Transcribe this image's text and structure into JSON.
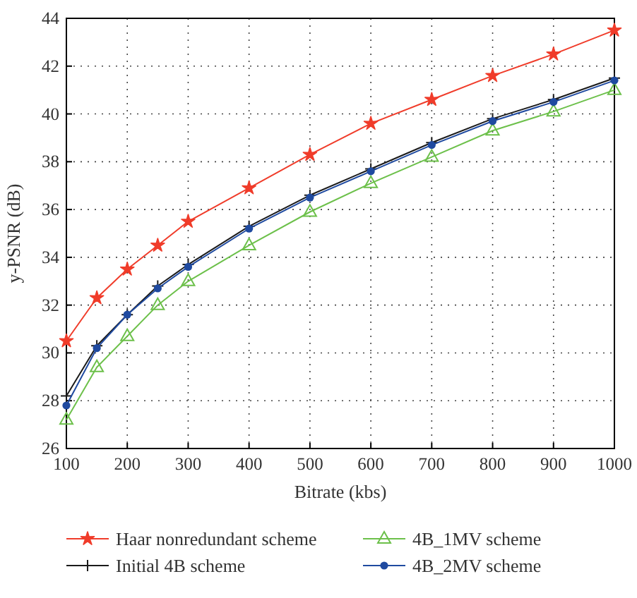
{
  "chart_data": {
    "type": "line",
    "xlabel": "Bitrate (kbs)",
    "ylabel": "y-PSNR (dB)",
    "x": [
      100,
      150,
      200,
      250,
      300,
      400,
      500,
      600,
      700,
      800,
      900,
      1000
    ],
    "series": [
      {
        "name": "Haar nonredundant scheme",
        "color": "#f03c2a",
        "marker": "star",
        "values": [
          30.5,
          32.3,
          33.5,
          34.5,
          35.5,
          36.9,
          38.3,
          39.6,
          40.6,
          41.6,
          42.5,
          43.5
        ]
      },
      {
        "name": "4B_1MV scheme",
        "color": "#6cc04a",
        "marker": "triangle",
        "values": [
          27.2,
          29.4,
          30.7,
          32.0,
          33.0,
          34.5,
          35.9,
          37.1,
          38.2,
          39.3,
          40.1,
          41.0
        ]
      },
      {
        "name": "Initial 4B scheme",
        "color": "#1a1a1a",
        "marker": "cross",
        "values": [
          28.2,
          30.3,
          31.6,
          32.8,
          33.7,
          35.3,
          36.6,
          37.7,
          38.8,
          39.8,
          40.6,
          41.5
        ]
      },
      {
        "name": "4B_2MV scheme",
        "color": "#1f4aa0",
        "marker": "circle",
        "values": [
          27.8,
          30.2,
          31.6,
          32.7,
          33.6,
          35.2,
          36.5,
          37.6,
          38.7,
          39.7,
          40.5,
          41.4
        ]
      }
    ],
    "xlim": [
      100,
      1000
    ],
    "xticks": [
      100,
      200,
      300,
      400,
      500,
      600,
      700,
      800,
      900,
      1000
    ],
    "ylim": [
      26,
      44
    ],
    "yticks": [
      26,
      28,
      30,
      32,
      34,
      36,
      38,
      40,
      42,
      44
    ],
    "grid": true,
    "line_style": "solid",
    "legend": "bottom"
  }
}
